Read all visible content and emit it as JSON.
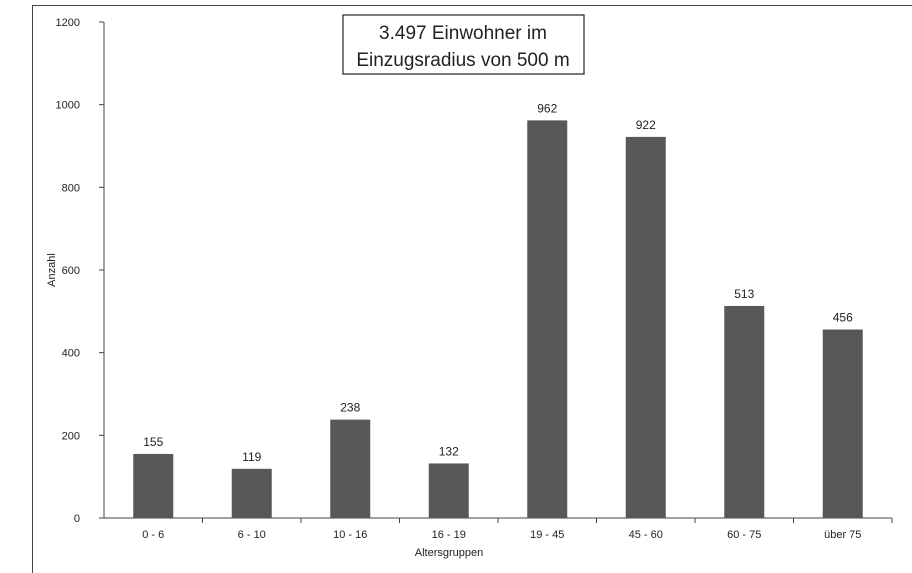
{
  "chart_data": {
    "type": "bar",
    "title_lines": [
      "3.497 Einwohner im",
      "Einzugsradius von 500 m"
    ],
    "xlabel": "Altersgruppen",
    "ylabel": "Anzahl",
    "categories": [
      "0 - 6",
      "6 - 10",
      "10 - 16",
      "16 - 19",
      "19 - 45",
      "45 - 60",
      "60 - 75",
      "über 75"
    ],
    "values": [
      155,
      119,
      238,
      132,
      962,
      922,
      513,
      456
    ],
    "ylim": [
      0,
      1200
    ],
    "yticks": [
      0,
      200,
      400,
      600,
      800,
      1000,
      1200
    ],
    "grid": false,
    "legend": "none",
    "bar_color": "#585858"
  }
}
